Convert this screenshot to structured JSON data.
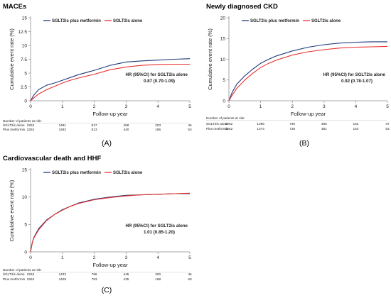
{
  "panels": [
    {
      "title": "MACEs",
      "letter": "(A)",
      "ylabel": "Cumulative event rate (%)",
      "xlabel": "Follow-up year",
      "hr_line1": "HR (95%CI) for SGLT2is alone",
      "hr_line2": "0.87 (0.70-1.09)",
      "risk": {
        "title": "Number of patients at risk:",
        "rows": [
          {
            "label": "SGLT2is alone",
            "values": [
              "2262",
              "1491",
              "817",
              "458",
              "203",
              "45"
            ]
          },
          {
            "label": "Plus metformin",
            "values": [
              "2262",
              "1482",
              "813",
              "440",
              "186",
              "53"
            ]
          }
        ]
      }
    },
    {
      "title": "Newly diagnosed CKD",
      "letter": "(B)",
      "ylabel": "Cumulative event rate (%)",
      "xlabel": "Follow-up year",
      "hr_line1": "HR (95%CI) for SGLT2is alone",
      "hr_line2": "0.92 (0.78-1.07)",
      "risk": {
        "title": "Number of patients at risk:",
        "rows": [
          {
            "label": "SGLT2is alone",
            "values": [
              "2262",
              "1395",
              "740",
              "395",
              "162",
              "37"
            ]
          },
          {
            "label": "Plus metformin",
            "values": [
              "2262",
              "1374",
              "736",
              "381",
              "153",
              "53"
            ]
          }
        ]
      }
    },
    {
      "title": "Cardiovascular death and HHF",
      "letter": "(C)",
      "ylabel": "Cumulative event rate (%)",
      "xlabel": "Follow-up year",
      "hr_line1": "HR (95%CI) for SGLT2is alone",
      "hr_line2": "1.01 (0.85-1.20)",
      "risk": {
        "title": "Number of patients at risk:",
        "rows": [
          {
            "label": "SGLT2is alone",
            "values": [
              "2262",
              "1433",
              "796",
              "445",
              "200",
              "46"
            ]
          },
          {
            "label": "Plus metformin",
            "values": [
              "2262",
              "1429",
              "793",
              "435",
              "188",
              "60"
            ]
          }
        ]
      }
    }
  ],
  "colors": {
    "plus_metformin": "#1f3b7a",
    "alone": "#e8302c",
    "axis": "#8c8c8c"
  },
  "chart_data": [
    {
      "type": "line",
      "title": "MACEs",
      "xlabel": "Follow-up year",
      "ylabel": "Cumulative event rate (%)",
      "xlim": [
        0,
        5
      ],
      "ylim": [
        0,
        15
      ],
      "xticks": [
        0,
        1,
        2,
        3,
        4,
        5
      ],
      "yticks": [
        0,
        2.5,
        5,
        7.5,
        10,
        12.5,
        15
      ],
      "ytick_labels": [
        "0",
        "2.5",
        "5",
        "7.5",
        "10",
        "12.5",
        "15"
      ],
      "legend": "top-left",
      "series": [
        {
          "name": "SGLT2is plus metformin",
          "x": [
            0,
            0.1,
            0.25,
            0.5,
            0.75,
            1,
            1.25,
            1.5,
            2,
            2.5,
            3,
            3.5,
            4,
            4.5,
            5
          ],
          "y": [
            0,
            1.0,
            2.0,
            2.8,
            3.2,
            3.7,
            4.2,
            4.7,
            5.5,
            6.4,
            7.0,
            7.2,
            7.35,
            7.5,
            7.6
          ]
        },
        {
          "name": "SGLT2is alone",
          "x": [
            0,
            0.1,
            0.25,
            0.5,
            0.75,
            1,
            1.25,
            1.5,
            2,
            2.5,
            3,
            3.5,
            4,
            4.5,
            5
          ],
          "y": [
            0,
            0.5,
            1.2,
            2.0,
            2.6,
            3.2,
            3.7,
            4.1,
            4.8,
            5.6,
            6.1,
            6.4,
            6.55,
            6.6,
            6.6
          ]
        }
      ],
      "annotations": [
        "HR (95%CI) for SGLT2is alone",
        "0.87 (0.70-1.09)"
      ]
    },
    {
      "type": "line",
      "title": "Newly diagnosed CKD",
      "xlabel": "Follow-up year",
      "ylabel": "Cumulative event rate (%)",
      "xlim": [
        0,
        5
      ],
      "ylim": [
        0,
        20
      ],
      "xticks": [
        0,
        1,
        2,
        3,
        4,
        5
      ],
      "yticks": [
        0,
        5,
        10,
        15,
        20
      ],
      "ytick_labels": [
        "0",
        "5",
        "10",
        "15",
        "20"
      ],
      "legend": "top-left",
      "series": [
        {
          "name": "SGLT2is plus metformin",
          "x": [
            0,
            0.1,
            0.25,
            0.5,
            0.75,
            1,
            1.25,
            1.5,
            2,
            2.5,
            3,
            3.5,
            4,
            4.5,
            5
          ],
          "y": [
            0,
            2.0,
            4.0,
            6.0,
            7.6,
            9.0,
            10.0,
            10.8,
            12.0,
            12.9,
            13.5,
            13.9,
            14.1,
            14.2,
            14.2
          ]
        },
        {
          "name": "SGLT2is alone",
          "x": [
            0,
            0.1,
            0.25,
            0.5,
            0.75,
            1,
            1.25,
            1.5,
            2,
            2.5,
            3,
            3.5,
            4,
            4.5,
            5
          ],
          "y": [
            0,
            1.3,
            3.0,
            5.0,
            6.6,
            8.0,
            9.0,
            9.8,
            11.0,
            11.8,
            12.3,
            12.7,
            12.9,
            13.0,
            13.1
          ]
        }
      ],
      "annotations": [
        "HR (95%CI) for SGLT2is alone",
        "0.92 (0.78-1.07)"
      ]
    },
    {
      "type": "line",
      "title": "Cardiovascular death and HHF",
      "xlabel": "Follow-up year",
      "ylabel": "Cumulative event rate (%)",
      "xlim": [
        0,
        5
      ],
      "ylim": [
        0,
        15
      ],
      "xticks": [
        0,
        1,
        2,
        3,
        4,
        5
      ],
      "yticks": [
        0,
        5,
        10,
        15
      ],
      "ytick_labels": [
        "0",
        "5",
        "10",
        "15"
      ],
      "legend": "top-left",
      "series": [
        {
          "name": "SGLT2is plus metformin",
          "x": [
            0,
            0.05,
            0.1,
            0.25,
            0.5,
            0.75,
            1,
            1.25,
            1.5,
            2,
            2.5,
            3,
            3.5,
            4,
            4.5,
            5
          ],
          "y": [
            0,
            1.6,
            2.6,
            4.2,
            5.8,
            6.8,
            7.7,
            8.3,
            8.9,
            9.6,
            10.0,
            10.3,
            10.4,
            10.5,
            10.6,
            10.6
          ]
        },
        {
          "name": "SGLT2is alone",
          "x": [
            0,
            0.05,
            0.1,
            0.25,
            0.5,
            0.75,
            1,
            1.25,
            1.5,
            2,
            2.5,
            3,
            3.5,
            4,
            4.5,
            5
          ],
          "y": [
            0,
            1.5,
            2.5,
            4.0,
            5.7,
            6.8,
            7.6,
            8.3,
            8.8,
            9.5,
            9.9,
            10.2,
            10.4,
            10.5,
            10.6,
            10.7
          ]
        }
      ],
      "annotations": [
        "HR (95%CI) for SGLT2is alone",
        "1.01 (0.85-1.20)"
      ]
    }
  ]
}
